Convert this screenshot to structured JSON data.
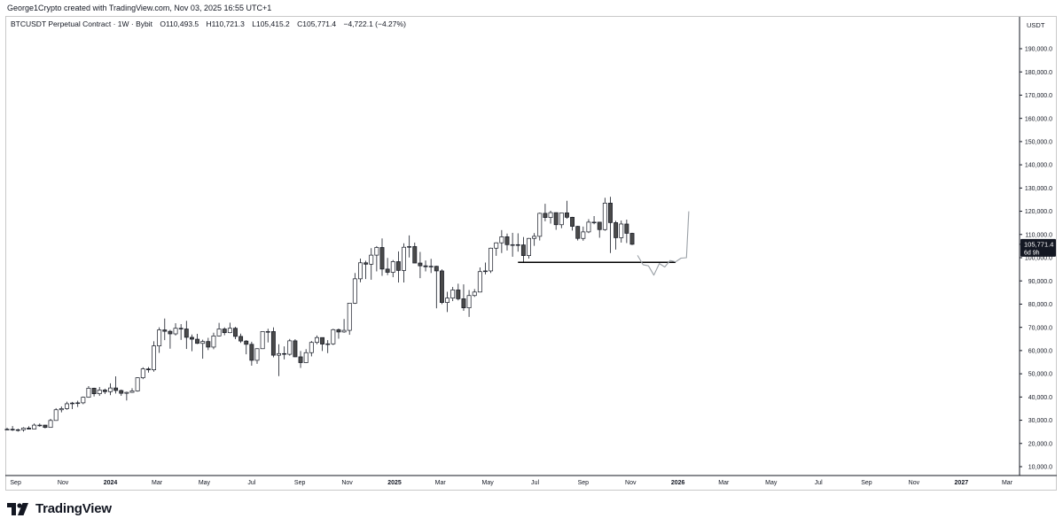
{
  "credit": "George1Crypto created with TradingView.com, Nov 03, 2025 16:55 UTC+1",
  "legend": {
    "symbol": "BTCUSDT Perpetual Contract · 1W · Bybit",
    "open": "O110,493.5",
    "high": "H110,721.3",
    "low": "L105,415.2",
    "close": "C105,771.4",
    "change": "−4,722.1 (−4.27%)"
  },
  "brand": {
    "name": "TradingView",
    "logo_icon": "tradingview-logo-icon"
  },
  "colors": {
    "candle_up": "#ffffff",
    "candle_down": "#4a4a4a",
    "outline": "#131722",
    "price_tag": "#131722",
    "sketch": "#9aa0a6"
  },
  "chart_data": {
    "type": "candlestick",
    "title": "BTCUSDT Perpetual Contract · 1W · Bybit",
    "currency_label": "USDT",
    "y_scale": "linear",
    "ylim": [
      4000,
      210000
    ],
    "y_ticks": [
      "190,000.0",
      "180,000.0",
      "170,000.0",
      "160,000.0",
      "150,000.0",
      "140,000.0",
      "130,000.0",
      "120,000.0",
      "110,000.0",
      "100,000.0",
      "90,000.0",
      "80,000.0",
      "70,000.0",
      "60,000.0",
      "50,000.0",
      "40,000.0",
      "30,000.0",
      "20,000.0",
      "10,000.0"
    ],
    "x_ticks": [
      {
        "label": "Sep",
        "date": "2023-09-01",
        "bold": false
      },
      {
        "label": "Nov",
        "date": "2023-11-01",
        "bold": false
      },
      {
        "label": "2024",
        "date": "2024-01-01",
        "bold": true
      },
      {
        "label": "Mar",
        "date": "2024-03-01",
        "bold": false
      },
      {
        "label": "May",
        "date": "2024-05-01",
        "bold": false
      },
      {
        "label": "Jul",
        "date": "2024-07-01",
        "bold": false
      },
      {
        "label": "Sep",
        "date": "2024-09-01",
        "bold": false
      },
      {
        "label": "Nov",
        "date": "2024-11-01",
        "bold": false
      },
      {
        "label": "2025",
        "date": "2025-01-01",
        "bold": true
      },
      {
        "label": "Mar",
        "date": "2025-03-01",
        "bold": false
      },
      {
        "label": "May",
        "date": "2025-05-01",
        "bold": false
      },
      {
        "label": "Jul",
        "date": "2025-07-01",
        "bold": false
      },
      {
        "label": "Sep",
        "date": "2025-09-01",
        "bold": false
      },
      {
        "label": "Nov",
        "date": "2025-11-01",
        "bold": false
      },
      {
        "label": "2026",
        "date": "2026-01-01",
        "bold": true
      },
      {
        "label": "Mar",
        "date": "2026-03-01",
        "bold": false
      },
      {
        "label": "May",
        "date": "2026-05-01",
        "bold": false
      },
      {
        "label": "Jul",
        "date": "2026-07-01",
        "bold": false
      },
      {
        "label": "Sep",
        "date": "2026-09-01",
        "bold": false
      },
      {
        "label": "Nov",
        "date": "2026-11-01",
        "bold": false
      },
      {
        "label": "2027",
        "date": "2027-01-01",
        "bold": true
      },
      {
        "label": "Mar",
        "date": "2027-03-01",
        "bold": false
      }
    ],
    "price_tag": {
      "value_label": "105,771.4",
      "countdown": "6d 9h",
      "value": 105771.4
    },
    "support_line": {
      "price": 98000,
      "start_date": "2025-06-09",
      "end_date": "2025-12-29"
    },
    "projection_sketch": [
      {
        "date": "2025-11-10",
        "price": 101000
      },
      {
        "date": "2025-11-17",
        "price": 97000
      },
      {
        "date": "2025-11-24",
        "price": 96500
      },
      {
        "date": "2025-12-01",
        "price": 92500
      },
      {
        "date": "2025-12-08",
        "price": 97500
      },
      {
        "date": "2025-12-15",
        "price": 96000
      },
      {
        "date": "2025-12-22",
        "price": 98800
      },
      {
        "date": "2025-12-29",
        "price": 98200
      },
      {
        "date": "2026-01-05",
        "price": 99800
      },
      {
        "date": "2026-01-12",
        "price": 100000
      },
      {
        "date": "2026-01-15",
        "price": 120000
      }
    ],
    "candles": [
      {
        "date": "2023-08-21",
        "o": 26000,
        "h": 26800,
        "l": 25800,
        "c": 26100
      },
      {
        "date": "2023-08-28",
        "o": 26100,
        "h": 27500,
        "l": 25400,
        "c": 25800
      },
      {
        "date": "2023-09-04",
        "o": 25800,
        "h": 26400,
        "l": 25100,
        "c": 25900
      },
      {
        "date": "2023-09-11",
        "o": 25900,
        "h": 27000,
        "l": 25100,
        "c": 26600
      },
      {
        "date": "2023-09-18",
        "o": 26600,
        "h": 27400,
        "l": 26000,
        "c": 26200
      },
      {
        "date": "2023-09-25",
        "o": 26200,
        "h": 28600,
        "l": 26100,
        "c": 27900
      },
      {
        "date": "2023-10-02",
        "o": 27900,
        "h": 28600,
        "l": 27200,
        "c": 27900
      },
      {
        "date": "2023-10-09",
        "o": 27900,
        "h": 28000,
        "l": 26500,
        "c": 26900
      },
      {
        "date": "2023-10-16",
        "o": 26900,
        "h": 30600,
        "l": 26800,
        "c": 29900
      },
      {
        "date": "2023-10-23",
        "o": 29900,
        "h": 35200,
        "l": 29800,
        "c": 34500
      },
      {
        "date": "2023-10-30",
        "o": 34500,
        "h": 35900,
        "l": 33400,
        "c": 35000
      },
      {
        "date": "2023-11-06",
        "o": 35000,
        "h": 38000,
        "l": 34500,
        "c": 37100
      },
      {
        "date": "2023-11-13",
        "o": 37100,
        "h": 37900,
        "l": 34800,
        "c": 37400
      },
      {
        "date": "2023-11-20",
        "o": 37400,
        "h": 38400,
        "l": 35700,
        "c": 37500
      },
      {
        "date": "2023-11-27",
        "o": 37500,
        "h": 40200,
        "l": 36900,
        "c": 39900
      },
      {
        "date": "2023-12-04",
        "o": 39900,
        "h": 44700,
        "l": 39700,
        "c": 43800
      },
      {
        "date": "2023-12-11",
        "o": 43800,
        "h": 44000,
        "l": 40200,
        "c": 41400
      },
      {
        "date": "2023-12-18",
        "o": 41400,
        "h": 44300,
        "l": 40500,
        "c": 43000
      },
      {
        "date": "2023-12-25",
        "o": 43000,
        "h": 43600,
        "l": 41300,
        "c": 42300
      },
      {
        "date": "2024-01-01",
        "o": 42300,
        "h": 45900,
        "l": 40800,
        "c": 43900
      },
      {
        "date": "2024-01-08",
        "o": 43900,
        "h": 48900,
        "l": 41500,
        "c": 42800
      },
      {
        "date": "2024-01-15",
        "o": 42800,
        "h": 43200,
        "l": 40500,
        "c": 41600
      },
      {
        "date": "2024-01-22",
        "o": 41600,
        "h": 42300,
        "l": 38500,
        "c": 42000
      },
      {
        "date": "2024-01-29",
        "o": 42000,
        "h": 43800,
        "l": 41800,
        "c": 42600
      },
      {
        "date": "2024-02-05",
        "o": 42600,
        "h": 48500,
        "l": 42300,
        "c": 48300
      },
      {
        "date": "2024-02-12",
        "o": 48300,
        "h": 52800,
        "l": 47700,
        "c": 52100
      },
      {
        "date": "2024-02-19",
        "o": 52100,
        "h": 52900,
        "l": 50500,
        "c": 51700
      },
      {
        "date": "2024-02-26",
        "o": 51700,
        "h": 64000,
        "l": 50900,
        "c": 62000
      },
      {
        "date": "2024-03-04",
        "o": 62000,
        "h": 70000,
        "l": 59000,
        "c": 68900
      },
      {
        "date": "2024-03-11",
        "o": 68900,
        "h": 73800,
        "l": 64500,
        "c": 68300
      },
      {
        "date": "2024-03-18",
        "o": 68300,
        "h": 68900,
        "l": 60800,
        "c": 67200
      },
      {
        "date": "2024-03-25",
        "o": 67200,
        "h": 71800,
        "l": 66500,
        "c": 69600
      },
      {
        "date": "2024-04-01",
        "o": 69600,
        "h": 71400,
        "l": 64600,
        "c": 69300
      },
      {
        "date": "2024-04-08",
        "o": 69300,
        "h": 72800,
        "l": 60700,
        "c": 65700
      },
      {
        "date": "2024-04-15",
        "o": 65700,
        "h": 66900,
        "l": 59700,
        "c": 64900
      },
      {
        "date": "2024-04-22",
        "o": 64900,
        "h": 67200,
        "l": 62800,
        "c": 63100
      },
      {
        "date": "2024-04-29",
        "o": 63100,
        "h": 64700,
        "l": 56500,
        "c": 63900
      },
      {
        "date": "2024-05-06",
        "o": 63900,
        "h": 65500,
        "l": 60200,
        "c": 61500
      },
      {
        "date": "2024-05-13",
        "o": 61500,
        "h": 67700,
        "l": 60600,
        "c": 66300
      },
      {
        "date": "2024-05-20",
        "o": 66300,
        "h": 71900,
        "l": 66100,
        "c": 69300
      },
      {
        "date": "2024-05-27",
        "o": 69300,
        "h": 70000,
        "l": 66600,
        "c": 67700
      },
      {
        "date": "2024-06-03",
        "o": 67700,
        "h": 72000,
        "l": 67500,
        "c": 69600
      },
      {
        "date": "2024-06-10",
        "o": 69600,
        "h": 70200,
        "l": 64900,
        "c": 66100
      },
      {
        "date": "2024-06-17",
        "o": 66100,
        "h": 67300,
        "l": 63300,
        "c": 64100
      },
      {
        "date": "2024-06-24",
        "o": 64100,
        "h": 64500,
        "l": 58400,
        "c": 62700
      },
      {
        "date": "2024-07-01",
        "o": 62700,
        "h": 63800,
        "l": 53500,
        "c": 55800
      },
      {
        "date": "2024-07-08",
        "o": 55800,
        "h": 61000,
        "l": 54300,
        "c": 60800
      },
      {
        "date": "2024-07-15",
        "o": 60800,
        "h": 68300,
        "l": 60700,
        "c": 68200
      },
      {
        "date": "2024-07-22",
        "o": 68200,
        "h": 69400,
        "l": 63500,
        "c": 68200
      },
      {
        "date": "2024-07-29",
        "o": 68200,
        "h": 70000,
        "l": 57100,
        "c": 58000
      },
      {
        "date": "2024-08-05",
        "o": 58000,
        "h": 62700,
        "l": 49000,
        "c": 58700
      },
      {
        "date": "2024-08-12",
        "o": 58700,
        "h": 61800,
        "l": 56200,
        "c": 58400
      },
      {
        "date": "2024-08-19",
        "o": 58400,
        "h": 65000,
        "l": 57800,
        "c": 64200
      },
      {
        "date": "2024-08-26",
        "o": 64200,
        "h": 64900,
        "l": 57200,
        "c": 57300
      },
      {
        "date": "2024-09-02",
        "o": 57300,
        "h": 59800,
        "l": 52500,
        "c": 54800
      },
      {
        "date": "2024-09-09",
        "o": 54800,
        "h": 60600,
        "l": 54600,
        "c": 59100
      },
      {
        "date": "2024-09-16",
        "o": 59100,
        "h": 64100,
        "l": 57500,
        "c": 63500
      },
      {
        "date": "2024-09-23",
        "o": 63500,
        "h": 66500,
        "l": 62700,
        "c": 65600
      },
      {
        "date": "2024-09-30",
        "o": 65600,
        "h": 65600,
        "l": 59800,
        "c": 62800
      },
      {
        "date": "2024-10-07",
        "o": 62800,
        "h": 64500,
        "l": 58900,
        "c": 62900
      },
      {
        "date": "2024-10-14",
        "o": 62900,
        "h": 69400,
        "l": 62400,
        "c": 69000
      },
      {
        "date": "2024-10-21",
        "o": 69000,
        "h": 69500,
        "l": 65100,
        "c": 68000
      },
      {
        "date": "2024-10-28",
        "o": 68000,
        "h": 73600,
        "l": 67700,
        "c": 68700
      },
      {
        "date": "2024-11-04",
        "o": 68700,
        "h": 80400,
        "l": 66800,
        "c": 80400
      },
      {
        "date": "2024-11-11",
        "o": 80400,
        "h": 93400,
        "l": 80100,
        "c": 90900
      },
      {
        "date": "2024-11-18",
        "o": 90900,
        "h": 99600,
        "l": 89400,
        "c": 97800
      },
      {
        "date": "2024-11-25",
        "o": 97800,
        "h": 98700,
        "l": 90800,
        "c": 97200
      },
      {
        "date": "2024-12-02",
        "o": 97200,
        "h": 104100,
        "l": 90500,
        "c": 101100
      },
      {
        "date": "2024-12-09",
        "o": 101100,
        "h": 105000,
        "l": 94100,
        "c": 104400
      },
      {
        "date": "2024-12-16",
        "o": 104400,
        "h": 108300,
        "l": 92200,
        "c": 95100
      },
      {
        "date": "2024-12-23",
        "o": 95100,
        "h": 99900,
        "l": 92500,
        "c": 93700
      },
      {
        "date": "2024-12-30",
        "o": 93700,
        "h": 99000,
        "l": 91600,
        "c": 98300
      },
      {
        "date": "2025-01-06",
        "o": 98300,
        "h": 102700,
        "l": 89300,
        "c": 94500
      },
      {
        "date": "2025-01-13",
        "o": 94500,
        "h": 106200,
        "l": 89300,
        "c": 104500
      },
      {
        "date": "2025-01-20",
        "o": 104500,
        "h": 109600,
        "l": 100100,
        "c": 104800
      },
      {
        "date": "2025-01-27",
        "o": 104800,
        "h": 106500,
        "l": 97800,
        "c": 97700
      },
      {
        "date": "2025-02-03",
        "o": 97700,
        "h": 102500,
        "l": 91200,
        "c": 96500
      },
      {
        "date": "2025-02-10",
        "o": 96500,
        "h": 98800,
        "l": 94100,
        "c": 96100
      },
      {
        "date": "2025-02-17",
        "o": 96100,
        "h": 99500,
        "l": 93400,
        "c": 96300
      },
      {
        "date": "2025-02-24",
        "o": 96300,
        "h": 96500,
        "l": 78200,
        "c": 94300
      },
      {
        "date": "2025-03-03",
        "o": 94300,
        "h": 95000,
        "l": 80000,
        "c": 80700
      },
      {
        "date": "2025-03-10",
        "o": 80700,
        "h": 85300,
        "l": 76600,
        "c": 82600
      },
      {
        "date": "2025-03-17",
        "o": 82600,
        "h": 87400,
        "l": 81300,
        "c": 86100
      },
      {
        "date": "2025-03-24",
        "o": 86100,
        "h": 88800,
        "l": 81600,
        "c": 82300
      },
      {
        "date": "2025-03-31",
        "o": 82300,
        "h": 88500,
        "l": 77100,
        "c": 78400
      },
      {
        "date": "2025-04-07",
        "o": 78400,
        "h": 86100,
        "l": 74500,
        "c": 83700
      },
      {
        "date": "2025-04-14",
        "o": 83700,
        "h": 86500,
        "l": 83100,
        "c": 85200
      },
      {
        "date": "2025-04-21",
        "o": 85200,
        "h": 95800,
        "l": 85100,
        "c": 94000
      },
      {
        "date": "2025-04-28",
        "o": 94000,
        "h": 97900,
        "l": 92800,
        "c": 94300
      },
      {
        "date": "2025-05-05",
        "o": 94300,
        "h": 104300,
        "l": 93400,
        "c": 104100
      },
      {
        "date": "2025-05-12",
        "o": 104100,
        "h": 106600,
        "l": 100800,
        "c": 106400
      },
      {
        "date": "2025-05-19",
        "o": 106400,
        "h": 111900,
        "l": 102000,
        "c": 109000
      },
      {
        "date": "2025-05-26",
        "o": 109000,
        "h": 110400,
        "l": 103100,
        "c": 105600
      },
      {
        "date": "2025-06-02",
        "o": 105600,
        "h": 110700,
        "l": 100400,
        "c": 105600
      },
      {
        "date": "2025-06-09",
        "o": 105600,
        "h": 110500,
        "l": 102600,
        "c": 105500
      },
      {
        "date": "2025-06-16",
        "o": 105500,
        "h": 108900,
        "l": 98200,
        "c": 100900
      },
      {
        "date": "2025-06-23",
        "o": 100900,
        "h": 108500,
        "l": 99600,
        "c": 108300
      },
      {
        "date": "2025-06-30",
        "o": 108300,
        "h": 110600,
        "l": 105100,
        "c": 109200
      },
      {
        "date": "2025-07-07",
        "o": 109200,
        "h": 119400,
        "l": 107400,
        "c": 119100
      },
      {
        "date": "2025-07-14",
        "o": 119100,
        "h": 123200,
        "l": 115700,
        "c": 117300
      },
      {
        "date": "2025-07-21",
        "o": 117300,
        "h": 120200,
        "l": 114700,
        "c": 119400
      },
      {
        "date": "2025-07-28",
        "o": 119400,
        "h": 119500,
        "l": 112000,
        "c": 114200
      },
      {
        "date": "2025-08-04",
        "o": 114200,
        "h": 119300,
        "l": 112700,
        "c": 119300
      },
      {
        "date": "2025-08-11",
        "o": 119300,
        "h": 124500,
        "l": 116800,
        "c": 117400
      },
      {
        "date": "2025-08-18",
        "o": 117400,
        "h": 117600,
        "l": 111700,
        "c": 113500
      },
      {
        "date": "2025-08-25",
        "o": 113500,
        "h": 113700,
        "l": 107400,
        "c": 108300
      },
      {
        "date": "2025-09-01",
        "o": 108300,
        "h": 113400,
        "l": 107300,
        "c": 111100
      },
      {
        "date": "2025-09-08",
        "o": 111100,
        "h": 116600,
        "l": 110600,
        "c": 115300
      },
      {
        "date": "2025-09-15",
        "o": 115300,
        "h": 117900,
        "l": 114400,
        "c": 115300
      },
      {
        "date": "2025-09-22",
        "o": 115300,
        "h": 115400,
        "l": 108600,
        "c": 112100
      },
      {
        "date": "2025-09-29",
        "o": 112100,
        "h": 125800,
        "l": 111600,
        "c": 123500
      },
      {
        "date": "2025-10-06",
        "o": 123500,
        "h": 126200,
        "l": 102000,
        "c": 115100
      },
      {
        "date": "2025-10-13",
        "o": 115100,
        "h": 115900,
        "l": 103500,
        "c": 108600
      },
      {
        "date": "2025-10-20",
        "o": 108600,
        "h": 116000,
        "l": 106500,
        "c": 114500
      },
      {
        "date": "2025-10-27",
        "o": 114500,
        "h": 116400,
        "l": 106300,
        "c": 110500
      },
      {
        "date": "2025-11-03",
        "o": 110493.5,
        "h": 110721.3,
        "l": 105415.2,
        "c": 105771.4
      }
    ]
  }
}
